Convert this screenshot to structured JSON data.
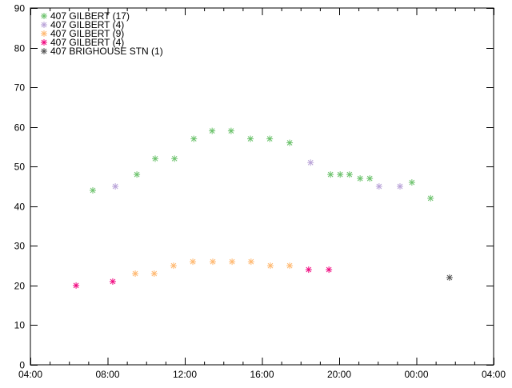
{
  "chart_data": {
    "type": "scatter",
    "title": "",
    "xlabel": "",
    "ylabel": "",
    "xlim": [
      "04:00",
      "04:00 (+1 day)"
    ],
    "ylim": [
      0,
      90
    ],
    "x_ticks": [
      "04:00",
      "08:00",
      "12:00",
      "16:00",
      "20:00",
      "00:00",
      "04:00"
    ],
    "y_ticks": [
      0,
      10,
      20,
      30,
      40,
      50,
      60,
      70,
      80,
      90
    ],
    "grid": false,
    "legend_position": "top-left",
    "marker": "asterisk",
    "series": [
      {
        "name": "407 GILBERT (17)",
        "color": "#6cc26c",
        "x": [
          "07:14",
          "09:31",
          "10:28",
          "11:28",
          "12:28",
          "13:25",
          "14:24",
          "15:24",
          "16:24",
          "17:26",
          "19:33",
          "20:03",
          "20:32",
          "21:05",
          "21:35",
          "23:46",
          "00:44"
        ],
        "y": [
          44,
          48,
          52,
          52,
          57,
          59,
          59,
          57,
          57,
          56,
          48,
          48,
          48,
          47,
          47,
          46,
          42
        ]
      },
      {
        "name": "407 GILBERT (4)",
        "color": "#b9a3d8",
        "x": [
          "08:24",
          "18:31",
          "22:04",
          "23:09"
        ],
        "y": [
          45,
          51,
          45,
          45
        ]
      },
      {
        "name": "407 GILBERT (9)",
        "color": "#ffb870",
        "x": [
          "09:26",
          "10:25",
          "11:25",
          "12:25",
          "13:27",
          "14:27",
          "15:26",
          "16:26",
          "17:26"
        ],
        "y": [
          23,
          23,
          25,
          26,
          26,
          26,
          26,
          25,
          25
        ]
      },
      {
        "name": "407 GILBERT (4)",
        "color": "#f0067f",
        "x": [
          "06:22",
          "08:16",
          "18:25",
          "19:28"
        ],
        "y": [
          20,
          21,
          24,
          24
        ]
      },
      {
        "name": "407 BRIGHOUSE STN (1)",
        "color": "#555555",
        "x": [
          "01:43"
        ],
        "y": [
          22
        ]
      }
    ]
  }
}
